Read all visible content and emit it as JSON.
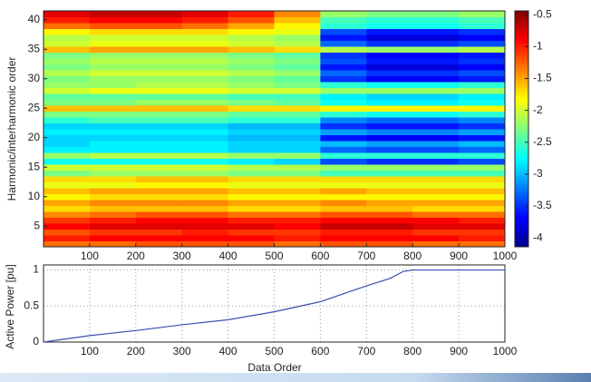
{
  "chart_data": [
    {
      "type": "heatmap",
      "ylabel": "Harmonic/interharmonic order",
      "x_bins": [
        0,
        100,
        200,
        300,
        400,
        500,
        600,
        700,
        800,
        900,
        1000
      ],
      "y": [
        2,
        3,
        4,
        5,
        6,
        7,
        8,
        9,
        10,
        11,
        12,
        13,
        14,
        15,
        16,
        17,
        18,
        19,
        20,
        21,
        22,
        23,
        24,
        25,
        26,
        27,
        28,
        29,
        30,
        31,
        32,
        33,
        34,
        35,
        36,
        37,
        38,
        39,
        40,
        41
      ],
      "values": [
        [
          -1.3,
          -1.3,
          -1.2,
          -1.2,
          -1.2,
          -1.3,
          -1.2,
          -1.2,
          -1.3,
          -1.3
        ],
        [
          -1.0,
          -0.9,
          -0.9,
          -0.9,
          -0.9,
          -1.0,
          -0.9,
          -0.9,
          -0.9,
          -1.0
        ],
        [
          -1.2,
          -1.1,
          -1.1,
          -1.0,
          -1.1,
          -1.1,
          -1.0,
          -1.0,
          -1.1,
          -1.1
        ],
        [
          -0.9,
          -0.8,
          -0.8,
          -0.8,
          -0.8,
          -0.9,
          -0.7,
          -0.7,
          -0.8,
          -0.8
        ],
        [
          -1.1,
          -1.0,
          -0.9,
          -0.9,
          -1.0,
          -1.0,
          -0.9,
          -0.9,
          -0.9,
          -1.0
        ],
        [
          -1.4,
          -1.3,
          -1.2,
          -1.2,
          -1.3,
          -1.3,
          -1.2,
          -1.2,
          -1.3,
          -1.3
        ],
        [
          -1.7,
          -1.6,
          -1.6,
          -1.6,
          -1.7,
          -1.7,
          -1.6,
          -1.6,
          -1.7,
          -1.7
        ],
        [
          -1.5,
          -1.4,
          -1.4,
          -1.4,
          -1.5,
          -1.5,
          -1.4,
          -1.5,
          -1.5,
          -1.5
        ],
        [
          -1.8,
          -1.7,
          -1.7,
          -1.7,
          -1.8,
          -1.8,
          -1.8,
          -1.8,
          -1.8,
          -1.8
        ],
        [
          -1.6,
          -1.5,
          -1.5,
          -1.5,
          -1.6,
          -1.6,
          -1.5,
          -1.6,
          -1.6,
          -1.6
        ],
        [
          -1.9,
          -1.9,
          -1.8,
          -1.8,
          -1.9,
          -1.9,
          -1.9,
          -1.9,
          -1.9,
          -1.9
        ],
        [
          -1.7,
          -1.7,
          -1.6,
          -1.6,
          -1.7,
          -1.7,
          -1.7,
          -1.7,
          -1.7,
          -1.7
        ],
        [
          -2.3,
          -2.2,
          -2.2,
          -2.2,
          -2.3,
          -2.3,
          -2.5,
          -2.5,
          -2.5,
          -2.5
        ],
        [
          -2.0,
          -2.0,
          -2.0,
          -2.0,
          -2.1,
          -2.1,
          -2.2,
          -2.2,
          -2.2,
          -2.2
        ],
        [
          -2.7,
          -2.7,
          -2.7,
          -2.7,
          -2.8,
          -2.9,
          -3.4,
          -3.5,
          -3.5,
          -3.4
        ],
        [
          -2.2,
          -2.1,
          -2.1,
          -2.1,
          -2.2,
          -2.2,
          -2.6,
          -2.6,
          -2.6,
          -2.6
        ],
        [
          -2.8,
          -2.8,
          -2.8,
          -2.8,
          -2.9,
          -2.9,
          -3.3,
          -3.4,
          -3.4,
          -3.3
        ],
        [
          -2.9,
          -2.8,
          -2.8,
          -2.8,
          -2.9,
          -2.9,
          -3.0,
          -3.1,
          -3.1,
          -3.0
        ],
        [
          -2.9,
          -2.9,
          -2.9,
          -2.9,
          -3.0,
          -3.0,
          -3.6,
          -3.7,
          -3.7,
          -3.6
        ],
        [
          -2.8,
          -2.8,
          -2.8,
          -2.8,
          -2.9,
          -2.9,
          -3.1,
          -3.2,
          -3.2,
          -3.1
        ],
        [
          -2.9,
          -2.9,
          -2.9,
          -2.9,
          -3.0,
          -3.0,
          -3.5,
          -3.6,
          -3.6,
          -3.5
        ],
        [
          -2.6,
          -2.5,
          -2.5,
          -2.5,
          -2.6,
          -2.6,
          -3.2,
          -3.3,
          -3.3,
          -3.2
        ],
        [
          -2.3,
          -2.3,
          -2.3,
          -2.3,
          -2.4,
          -2.4,
          -2.6,
          -2.7,
          -2.7,
          -2.6
        ],
        [
          -1.6,
          -1.6,
          -1.6,
          -1.6,
          -1.7,
          -1.7,
          -1.8,
          -1.8,
          -1.8,
          -1.8
        ],
        [
          -2.3,
          -2.3,
          -2.2,
          -2.2,
          -2.3,
          -2.4,
          -2.7,
          -2.8,
          -2.8,
          -2.7
        ],
        [
          -2.4,
          -2.4,
          -2.4,
          -2.4,
          -2.5,
          -2.5,
          -2.8,
          -2.9,
          -2.9,
          -2.8
        ],
        [
          -2.0,
          -1.9,
          -1.9,
          -1.9,
          -2.0,
          -2.0,
          -2.2,
          -2.2,
          -2.2,
          -2.2
        ],
        [
          -2.2,
          -2.2,
          -2.1,
          -2.1,
          -2.2,
          -2.3,
          -2.6,
          -2.7,
          -2.7,
          -2.6
        ],
        [
          -2.3,
          -2.2,
          -2.2,
          -2.2,
          -2.3,
          -2.4,
          -3.5,
          -3.7,
          -3.7,
          -3.6
        ],
        [
          -2.1,
          -2.0,
          -2.0,
          -2.0,
          -2.1,
          -2.2,
          -3.3,
          -3.5,
          -3.5,
          -3.4
        ],
        [
          -2.3,
          -2.2,
          -2.2,
          -2.2,
          -2.3,
          -2.4,
          -3.6,
          -3.8,
          -3.8,
          -3.7
        ],
        [
          -2.2,
          -2.1,
          -2.1,
          -2.1,
          -2.2,
          -2.3,
          -3.4,
          -3.6,
          -3.6,
          -3.5
        ],
        [
          -2.3,
          -2.2,
          -2.2,
          -2.2,
          -2.3,
          -2.4,
          -3.5,
          -3.7,
          -3.7,
          -3.6
        ],
        [
          -1.6,
          -1.5,
          -1.5,
          -1.5,
          -1.6,
          -1.7,
          -2.1,
          -2.2,
          -2.2,
          -2.1
        ],
        [
          -2.0,
          -1.9,
          -1.9,
          -1.9,
          -2.0,
          -2.1,
          -3.3,
          -3.5,
          -3.5,
          -3.4
        ],
        [
          -2.1,
          -2.0,
          -2.0,
          -2.0,
          -2.1,
          -2.2,
          -3.6,
          -3.8,
          -3.8,
          -3.7
        ],
        [
          -1.8,
          -1.7,
          -1.7,
          -1.7,
          -1.8,
          -1.9,
          -3.4,
          -3.6,
          -3.6,
          -3.5
        ],
        [
          -1.3,
          -1.2,
          -1.2,
          -1.3,
          -1.5,
          -1.8,
          -2.6,
          -2.7,
          -2.7,
          -2.6
        ],
        [
          -1.0,
          -0.9,
          -0.9,
          -1.0,
          -1.2,
          -1.6,
          -2.5,
          -2.6,
          -2.6,
          -2.5
        ],
        [
          -0.8,
          -0.7,
          -0.7,
          -0.8,
          -1.0,
          -1.4,
          -2.2,
          -2.3,
          -2.3,
          -2.2
        ]
      ],
      "xlim": [
        0,
        1000
      ],
      "xticks": [
        100,
        200,
        300,
        400,
        500,
        600,
        700,
        800,
        900,
        1000
      ],
      "ylim": [
        1.5,
        41.5
      ],
      "yticks": [
        5,
        10,
        15,
        20,
        25,
        30,
        35,
        40
      ],
      "colormap": "jet",
      "clim": [
        -4.14,
        -0.44
      ],
      "cticks": [
        -0.5,
        -1,
        -1.5,
        -2,
        -2.5,
        -3,
        -3.5,
        -4
      ]
    },
    {
      "type": "line",
      "xlabel": "Data Order",
      "ylabel": "Active Power [pu]",
      "x": [
        0,
        100,
        200,
        300,
        400,
        500,
        600,
        700,
        750,
        780,
        800,
        1000
      ],
      "values": [
        0,
        0.09,
        0.16,
        0.24,
        0.31,
        0.42,
        0.56,
        0.78,
        0.88,
        0.98,
        1,
        1
      ],
      "color": "#3a4fb0",
      "xlim": [
        0,
        1000
      ],
      "xticks": [
        100,
        200,
        300,
        400,
        500,
        600,
        700,
        800,
        900,
        1000
      ],
      "ylim": [
        0,
        1.07
      ],
      "yticks": [
        0,
        0.5,
        1
      ],
      "grid": true
    }
  ]
}
